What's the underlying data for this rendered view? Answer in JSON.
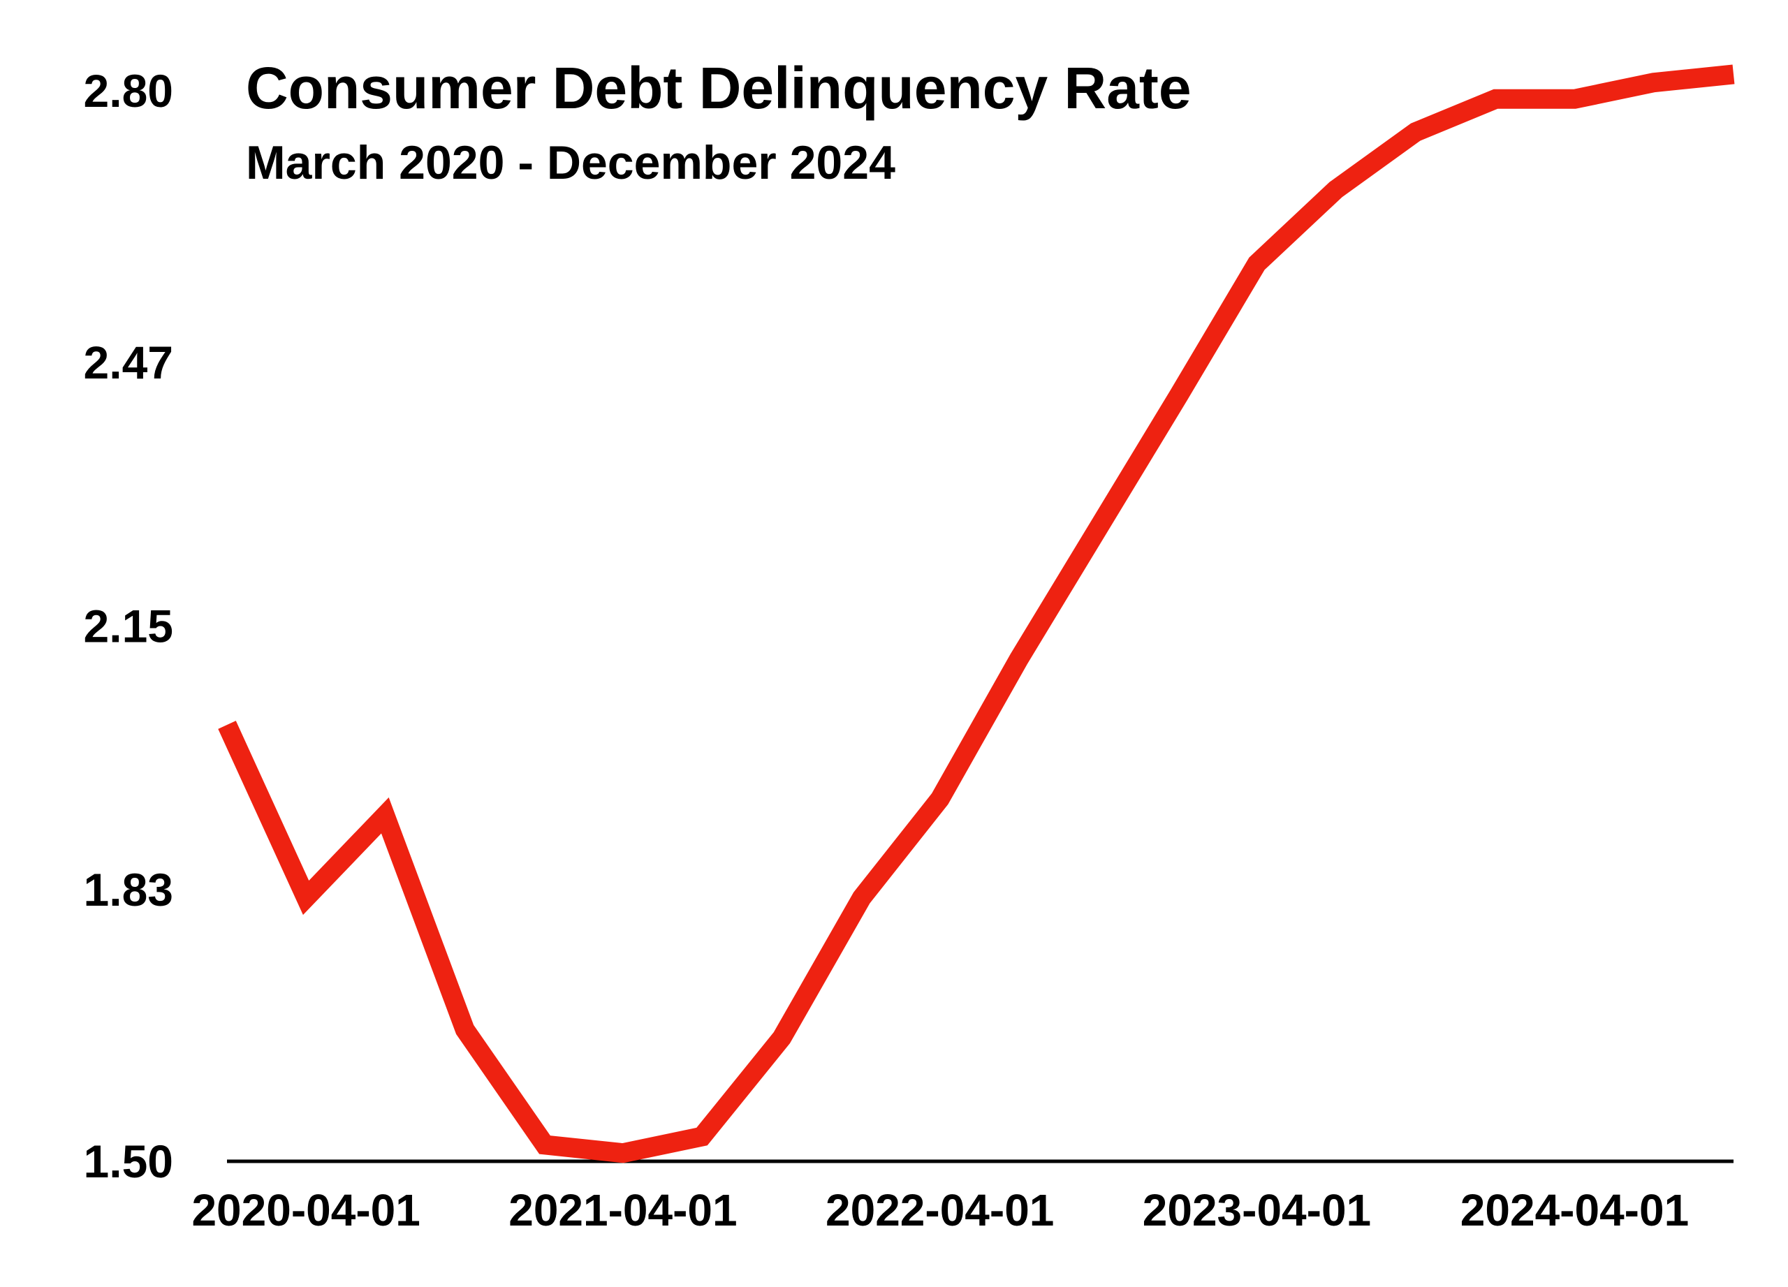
{
  "chart_data": {
    "type": "line",
    "title": "Consumer Debt Delinquency Rate",
    "subtitle": "March 2020 - December 2024",
    "xlabel": "",
    "ylabel": "",
    "ylim": [
      1.5,
      2.8
    ],
    "y_ticks": [
      "1.50",
      "1.83",
      "2.15",
      "2.47",
      "2.80"
    ],
    "x_ticks": [
      "2020-04-01",
      "2021-04-01",
      "2022-04-01",
      "2023-04-01",
      "2024-04-01"
    ],
    "grid": false,
    "legend": "none",
    "series_color": "#ee2211",
    "axis_color": "#000000",
    "x": [
      "2020-01-01",
      "2020-04-01",
      "2020-07-01",
      "2020-10-01",
      "2021-01-01",
      "2021-04-01",
      "2021-07-01",
      "2021-10-01",
      "2022-01-01",
      "2022-04-01",
      "2022-07-01",
      "2022-10-01",
      "2023-01-01",
      "2023-04-01",
      "2023-07-01",
      "2023-10-01",
      "2024-01-01",
      "2024-04-01",
      "2024-07-01",
      "2024-10-01"
    ],
    "series": [
      {
        "values": [
          2.03,
          1.82,
          1.92,
          1.66,
          1.52,
          1.51,
          1.53,
          1.65,
          1.82,
          1.94,
          2.11,
          2.27,
          2.43,
          2.59,
          2.68,
          2.75,
          2.79,
          2.79,
          2.81,
          2.82
        ]
      }
    ]
  }
}
